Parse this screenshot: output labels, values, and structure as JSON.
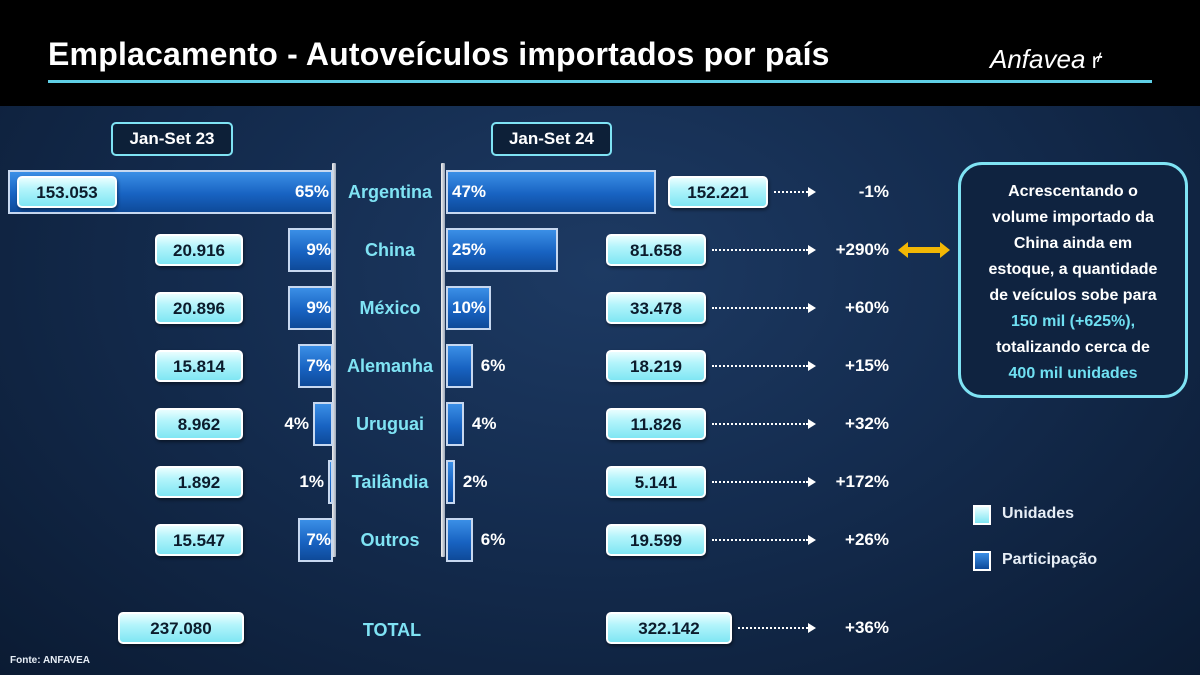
{
  "title": "Emplacamento - Autoveículos importados por país",
  "logo_text": "Anfavea",
  "periods": [
    "Jan-Set 23",
    "Jan-Set 24"
  ],
  "chart_data": {
    "type": "bar",
    "title": "Emplacamento - Autoveículos importados por país",
    "categories": [
      "Argentina",
      "China",
      "México",
      "Alemanha",
      "Uruguai",
      "Tailândia",
      "Outros"
    ],
    "series": [
      {
        "name": "Unidades",
        "period": "Jan-Set 23",
        "values": [
          153053,
          20916,
          20896,
          15814,
          8962,
          1892,
          15547
        ]
      },
      {
        "name": "Participação",
        "period": "Jan-Set 23",
        "values": [
          65,
          9,
          9,
          7,
          4,
          1,
          7
        ]
      },
      {
        "name": "Unidades",
        "period": "Jan-Set 24",
        "values": [
          152221,
          81658,
          33478,
          18219,
          11826,
          5141,
          19599
        ]
      },
      {
        "name": "Participação",
        "period": "Jan-Set 24",
        "values": [
          47,
          25,
          10,
          6,
          4,
          2,
          6
        ]
      }
    ],
    "units_23_text": [
      "153.053",
      "20.916",
      "20.896",
      "15.814",
      "8.962",
      "1.892",
      "15.547"
    ],
    "units_24_text": [
      "152.221",
      "81.658",
      "33.478",
      "18.219",
      "11.826",
      "5.141",
      "19.599"
    ],
    "share_23_text": [
      "65%",
      "9%",
      "9%",
      "7%",
      "4%",
      "1%",
      "7%"
    ],
    "share_24_text": [
      "47%",
      "25%",
      "10%",
      "6%",
      "4%",
      "2%",
      "6%"
    ],
    "variation_text": [
      "-1%",
      "+290%",
      "+60%",
      "+15%",
      "+32%",
      "+172%",
      "+26%"
    ],
    "total": {
      "label": "TOTAL",
      "units_23": "237.080",
      "units_24": "322.142",
      "variation": "+36%"
    },
    "legend": [
      "Unidades",
      "Participação"
    ],
    "colors": {
      "units": "#9ff0f8",
      "share": "#1f6ccc",
      "accent": "#7fe3f4",
      "arrow": "#f2b705"
    }
  },
  "note": {
    "lines": [
      "Acrescentando o",
      "volume importado da",
      "China ainda em",
      "estoque, a quantidade",
      "de veículos sobe para"
    ],
    "highlight_1": "150 mil (+625%),",
    "line_6": "totalizando cerca de",
    "highlight_2": "400 mil unidades"
  },
  "source": "Fonte: ANFAVEA"
}
